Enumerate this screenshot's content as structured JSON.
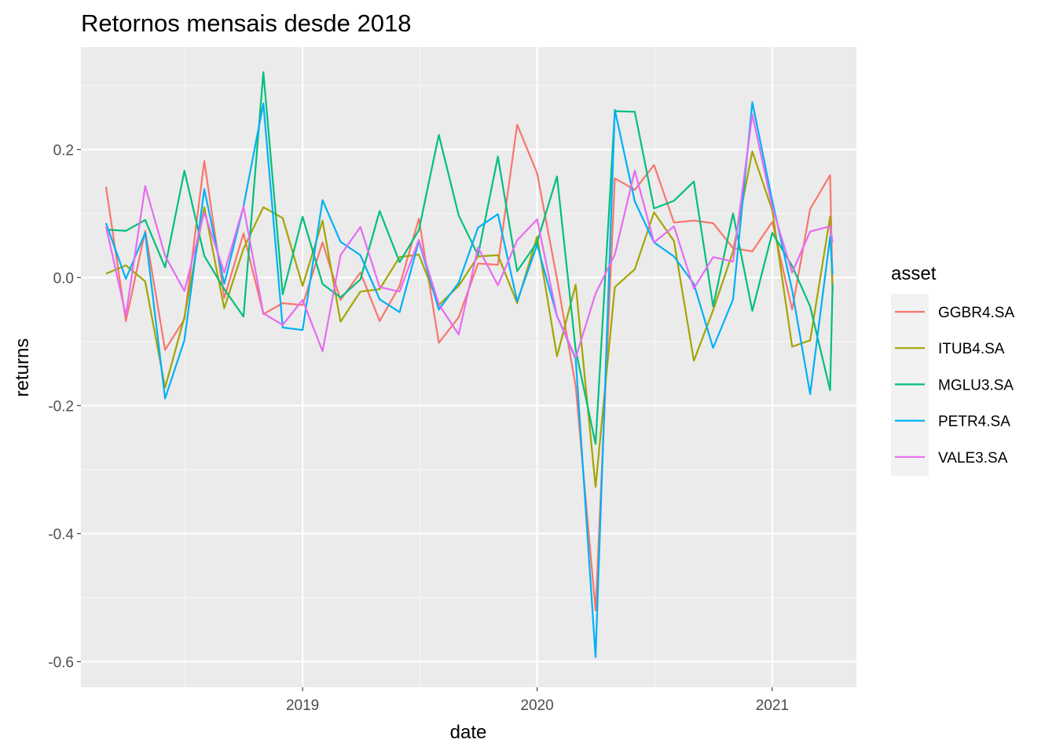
{
  "chart_data": {
    "type": "line",
    "title": "Retornos mensais desde 2018",
    "xlabel": "date",
    "ylabel": "returns",
    "ylim": [
      -0.64,
      0.36
    ],
    "xlim": [
      "2018-01-21",
      "2021-05-12"
    ],
    "grid": true,
    "legend_title": "asset",
    "legend_position": "right",
    "y_ticks": [
      {
        "value": 0.2,
        "label": "0.2"
      },
      {
        "value": 0.0,
        "label": "0.0"
      },
      {
        "value": -0.2,
        "label": "-0.2"
      },
      {
        "value": -0.4,
        "label": "-0.4"
      },
      {
        "value": -0.6,
        "label": "-0.6"
      }
    ],
    "x_ticks": [
      {
        "value": "2019-01-01",
        "label": "2019"
      },
      {
        "value": "2020-01-01",
        "label": "2020"
      },
      {
        "value": "2021-01-01",
        "label": "2021"
      }
    ],
    "x": [
      "2018-03-01",
      "2018-04-01",
      "2018-05-01",
      "2018-06-01",
      "2018-07-01",
      "2018-08-01",
      "2018-09-01",
      "2018-10-01",
      "2018-11-01",
      "2018-12-01",
      "2019-01-01",
      "2019-02-01",
      "2019-03-01",
      "2019-04-01",
      "2019-05-01",
      "2019-06-01",
      "2019-07-01",
      "2019-08-01",
      "2019-09-01",
      "2019-10-01",
      "2019-11-01",
      "2019-12-01",
      "2020-01-01",
      "2020-02-01",
      "2020-03-01",
      "2020-04-01",
      "2020-05-01",
      "2020-06-01",
      "2020-07-01",
      "2020-08-01",
      "2020-09-01",
      "2020-10-01",
      "2020-11-01",
      "2020-12-01",
      "2021-01-01",
      "2021-02-01",
      "2021-03-01",
      "2021-04-01",
      "2021-04-05"
    ],
    "series": [
      {
        "name": "GGBR4.SA",
        "color": "#F8766D",
        "values": [
          0.142,
          -0.068,
          0.073,
          -0.113,
          -0.065,
          0.182,
          -0.032,
          0.069,
          -0.057,
          -0.04,
          -0.043,
          0.055,
          -0.035,
          0.008,
          -0.068,
          -0.013,
          0.092,
          -0.102,
          -0.062,
          0.022,
          0.02,
          0.239,
          0.163,
          -0.002,
          -0.17,
          -0.52,
          0.155,
          0.137,
          0.176,
          0.086,
          0.089,
          0.085,
          0.046,
          0.041,
          0.087,
          -0.05,
          0.107,
          0.16,
          -0.02
        ]
      },
      {
        "name": "ITUB4.SA",
        "color": "#A3A500",
        "values": [
          0.006,
          0.019,
          -0.006,
          -0.172,
          -0.062,
          0.11,
          -0.048,
          0.045,
          0.11,
          0.093,
          -0.013,
          0.089,
          -0.069,
          -0.022,
          -0.018,
          0.032,
          0.036,
          -0.043,
          -0.013,
          0.033,
          0.035,
          -0.04,
          0.064,
          -0.123,
          -0.011,
          -0.327,
          -0.015,
          0.013,
          0.102,
          0.057,
          -0.13,
          -0.051,
          0.041,
          0.197,
          0.105,
          -0.108,
          -0.098,
          0.095,
          -0.025
        ]
      },
      {
        "name": "MGLU3.SA",
        "color": "#00BF7D",
        "values": [
          0.075,
          0.073,
          0.09,
          0.016,
          0.167,
          0.034,
          -0.018,
          -0.061,
          0.321,
          -0.026,
          0.095,
          -0.01,
          -0.031,
          -0.003,
          0.104,
          0.024,
          0.074,
          0.223,
          0.097,
          0.035,
          0.189,
          0.01,
          0.055,
          0.158,
          -0.113,
          -0.26,
          0.26,
          0.259,
          0.108,
          0.12,
          0.15,
          -0.045,
          0.1,
          -0.052,
          0.07,
          0.018,
          -0.045,
          -0.176,
          -0.01
        ]
      },
      {
        "name": "PETR4.SA",
        "color": "#00B0F6",
        "values": [
          0.085,
          -0.002,
          0.07,
          -0.189,
          -0.098,
          0.138,
          -0.01,
          0.111,
          0.272,
          -0.078,
          -0.082,
          0.121,
          0.056,
          0.035,
          -0.034,
          -0.054,
          0.057,
          -0.05,
          -0.008,
          0.078,
          0.099,
          -0.037,
          0.051,
          -0.06,
          -0.127,
          -0.593,
          0.262,
          0.119,
          0.055,
          0.033,
          -0.01,
          -0.11,
          -0.034,
          0.274,
          0.12,
          -0.02,
          -0.182,
          0.064,
          0.005
        ]
      },
      {
        "name": "VALE3.SA",
        "color": "#E76BF3",
        "values": [
          0.08,
          -0.059,
          0.143,
          0.034,
          -0.021,
          0.102,
          0.008,
          0.111,
          -0.056,
          -0.074,
          -0.035,
          -0.115,
          0.035,
          0.079,
          -0.015,
          -0.022,
          0.059,
          -0.042,
          -0.089,
          0.047,
          -0.012,
          0.058,
          0.091,
          -0.06,
          -0.125,
          -0.025,
          0.036,
          0.167,
          0.055,
          0.08,
          -0.017,
          0.032,
          0.025,
          0.255,
          0.11,
          0.008,
          0.072,
          0.08,
          0.055
        ]
      }
    ]
  }
}
